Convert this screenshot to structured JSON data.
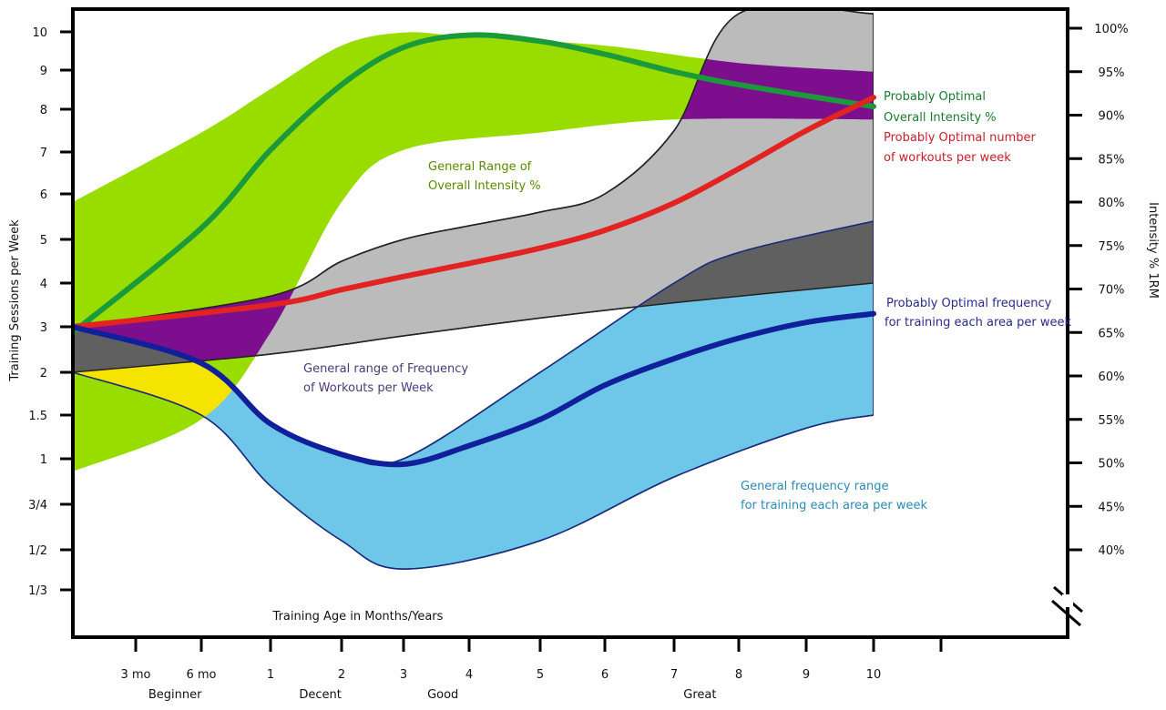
{
  "chart_data": {
    "type": "area",
    "title": "",
    "xlabel": "Training Age in Months/Years",
    "ylabel_left": "Training Sessions per Week",
    "ylabel_right": "Intensity % 1RM",
    "x_ticks": [
      {
        "x": 0.25,
        "label": "3 mo"
      },
      {
        "x": 0.5,
        "label": "6 mo"
      },
      {
        "x": 1,
        "label": "1"
      },
      {
        "x": 2,
        "label": "2"
      },
      {
        "x": 3,
        "label": "3"
      },
      {
        "x": 4,
        "label": "4"
      },
      {
        "x": 5,
        "label": "5"
      },
      {
        "x": 6,
        "label": "6"
      },
      {
        "x": 7,
        "label": "7"
      },
      {
        "x": 8,
        "label": "8"
      },
      {
        "x": 9,
        "label": "9"
      },
      {
        "x": 10,
        "label": "10"
      },
      {
        "x": 11,
        "label": ""
      }
    ],
    "x_categories": [
      {
        "label": "Beginner",
        "at": 0.4
      },
      {
        "label": "Decent",
        "at": 1.7
      },
      {
        "label": "Good",
        "at": 3.6
      },
      {
        "label": "Great",
        "at": 7.4
      }
    ],
    "y_left_ticks": [
      "10",
      "9",
      "8",
      "7",
      "6",
      "5",
      "4",
      "3",
      "2",
      "1.5",
      "1",
      "3/4",
      "1/2",
      "1/3"
    ],
    "y_right_ticks": [
      "100%",
      "95%",
      "90%",
      "85%",
      "80%",
      "75%",
      "70%",
      "65%",
      "60%",
      "55%",
      "50%",
      "45%",
      "40%"
    ],
    "y_right_break": true,
    "grid": false,
    "series": [
      {
        "name": "General Range of Overall Intensity %",
        "kind": "band",
        "color": "#99dd00",
        "upper": [
          [
            0,
            80
          ],
          [
            0.5,
            88
          ],
          [
            1,
            93
          ],
          [
            2,
            98
          ],
          [
            3,
            99.5
          ],
          [
            4,
            99
          ],
          [
            6,
            98
          ],
          [
            8,
            96
          ],
          [
            10,
            95
          ]
        ],
        "lower": [
          [
            0,
            49
          ],
          [
            0.5,
            55
          ],
          [
            1,
            65
          ],
          [
            2,
            80
          ],
          [
            3,
            86
          ],
          [
            5,
            88
          ],
          [
            7,
            89.5
          ],
          [
            10,
            89.5
          ]
        ]
      },
      {
        "name": "General range of Frequency of Workouts per Week",
        "kind": "band",
        "color": "#bbbbbb",
        "upper": [
          [
            0,
            3
          ],
          [
            1,
            3.7
          ],
          [
            2,
            4.5
          ],
          [
            3,
            5
          ],
          [
            4,
            5.3
          ],
          [
            5,
            5.6
          ],
          [
            6,
            6
          ],
          [
            7,
            7.5
          ],
          [
            8,
            10.5
          ],
          [
            10,
            10.5
          ]
        ],
        "lower": [
          [
            0,
            2
          ],
          [
            1,
            2.4
          ],
          [
            3,
            2.8
          ],
          [
            5,
            3.2
          ],
          [
            7,
            3.55
          ],
          [
            10,
            4
          ]
        ]
      },
      {
        "name": "General frequency range for training each area per week",
        "kind": "band",
        "color": "#6ec6e8",
        "upper": [
          [
            0,
            3
          ],
          [
            0.5,
            2.2
          ],
          [
            1,
            1.4
          ],
          [
            2,
            1.05
          ],
          [
            3,
            1
          ],
          [
            5,
            2
          ],
          [
            7,
            4
          ],
          [
            8,
            4.7
          ],
          [
            10,
            5.4
          ]
        ],
        "lower": [
          [
            0,
            2
          ],
          [
            0.5,
            1.5
          ],
          [
            1,
            0.85
          ],
          [
            2,
            0.55
          ],
          [
            3,
            0.42
          ],
          [
            5,
            0.55
          ],
          [
            7,
            0.9
          ],
          [
            9,
            1.35
          ],
          [
            10,
            1.5
          ]
        ]
      },
      {
        "name": "Probably Optimal Overall Intensity %",
        "kind": "line",
        "color": "#1a9a3a",
        "values": [
          [
            0,
            65
          ],
          [
            0.5,
            77
          ],
          [
            1,
            86
          ],
          [
            2,
            93.5
          ],
          [
            3,
            97.8
          ],
          [
            4,
            99.2
          ],
          [
            5,
            98.5
          ],
          [
            6,
            97
          ],
          [
            7,
            95
          ],
          [
            8,
            93.5
          ],
          [
            10,
            91
          ]
        ]
      },
      {
        "name": "Probably Optimal number of workouts per week",
        "kind": "line",
        "color": "#e32222",
        "values": [
          [
            0,
            3
          ],
          [
            1,
            3.5
          ],
          [
            2,
            3.85
          ],
          [
            3,
            4.15
          ],
          [
            4,
            4.45
          ],
          [
            5,
            4.8
          ],
          [
            6,
            5.2
          ],
          [
            7,
            5.8
          ],
          [
            8,
            6.6
          ],
          [
            9,
            7.5
          ],
          [
            10,
            8.3
          ]
        ]
      },
      {
        "name": "Probably Optimal frequency for training each area per week",
        "kind": "line",
        "color": "#10209a",
        "values": [
          [
            0,
            3
          ],
          [
            0.5,
            2.2
          ],
          [
            1,
            1.4
          ],
          [
            2,
            1.05
          ],
          [
            3,
            0.97
          ],
          [
            4,
            1.15
          ],
          [
            5,
            1.45
          ],
          [
            6,
            1.85
          ],
          [
            7,
            2.3
          ],
          [
            8,
            2.75
          ],
          [
            9,
            3.1
          ],
          [
            10,
            3.3
          ]
        ]
      }
    ],
    "annotations": [
      {
        "text": [
          "General Range of",
          "Overall Intensity %"
        ],
        "color": "#5a8a00"
      },
      {
        "text": [
          "General range of Frequency",
          "of Workouts per Week"
        ],
        "color": "#4a3a7a"
      },
      {
        "text": [
          "General frequency range",
          "for training each area per week"
        ],
        "color": "#2a8ab5"
      },
      {
        "text": [
          "Probably Optimal",
          "Overall Intensity %"
        ],
        "color": "#1a7a30"
      },
      {
        "text": [
          "Probably Optimal number",
          "of workouts per week"
        ],
        "color": "#c8202a"
      },
      {
        "text": [
          "Probably Optimal frequency",
          "for training each area per week"
        ],
        "color": "#2a2a8a"
      }
    ]
  }
}
